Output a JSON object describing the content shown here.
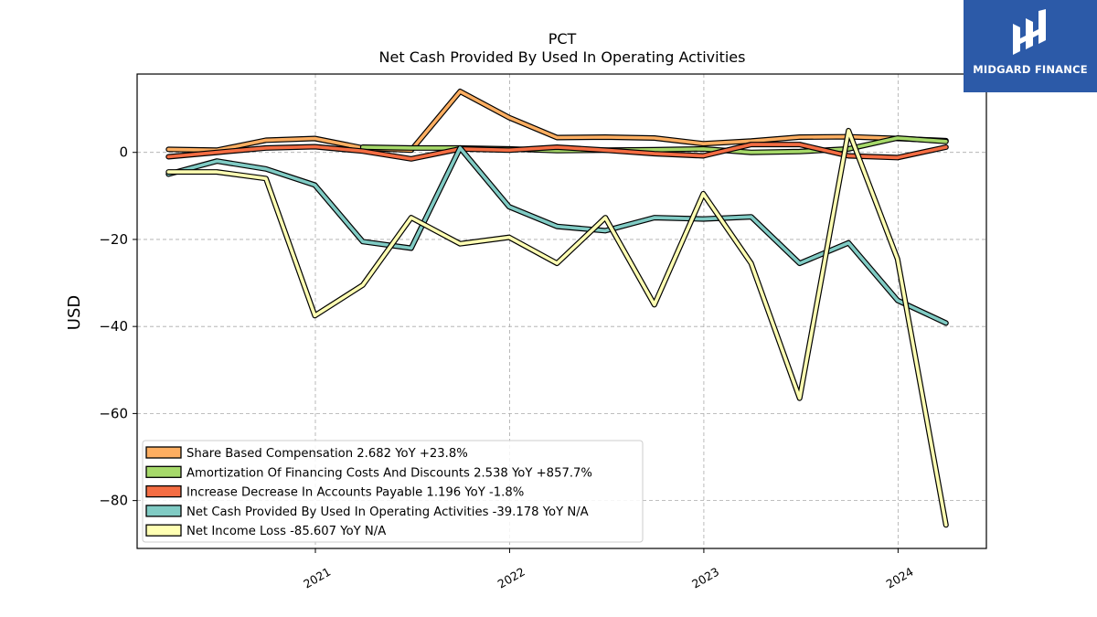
{
  "brand": {
    "name": "MIDGARD FINANCE",
    "bg_color": "#2c5aa8"
  },
  "chart_data": {
    "type": "line",
    "title": "PCT",
    "subtitle": "Net Cash Provided By Used In Operating Activities",
    "xlabel": "",
    "ylabel": "USD",
    "xlim": [
      "2020-02-01",
      "2024-06-15"
    ],
    "ylim": [
      -91,
      18
    ],
    "yticks": [
      0,
      -20,
      -40,
      -60,
      -80
    ],
    "ytick_labels": [
      "0",
      "−20",
      "−40",
      "−60",
      "−80"
    ],
    "xticks": [
      "2021-01-01",
      "2022-01-01",
      "2023-01-01",
      "2024-01-01"
    ],
    "xtick_labels": [
      "2021",
      "2022",
      "2023",
      "2024"
    ],
    "grid": true,
    "legend_position": "lower-left",
    "x": [
      "2020-03-31",
      "2020-06-30",
      "2020-09-30",
      "2020-12-31",
      "2021-03-31",
      "2021-06-30",
      "2021-09-30",
      "2021-12-31",
      "2022-03-31",
      "2022-06-30",
      "2022-09-30",
      "2022-12-31",
      "2023-03-31",
      "2023-06-30",
      "2023-09-30",
      "2023-12-31",
      "2024-03-31"
    ],
    "series": [
      {
        "name": "Share Based Compensation",
        "legend": "Share Based Compensation  2.682 YoY +23.8%",
        "color": "#fdae61",
        "values": [
          0.7,
          0.5,
          2.8,
          3.2,
          1.0,
          0.5,
          14.0,
          8.0,
          3.4,
          3.5,
          3.3,
          2.0,
          2.6,
          3.5,
          3.6,
          3.2,
          2.7
        ]
      },
      {
        "name": "Amortization Of Financing Costs And Discounts",
        "legend": "Amortization Of Financing Costs And Discounts  2.538 YoY +857.7%",
        "color": "#a6d96a",
        "values": [
          null,
          null,
          null,
          null,
          1.2,
          1.0,
          1.0,
          0.8,
          0.4,
          0.5,
          0.6,
          0.8,
          0.0,
          0.2,
          0.8,
          3.3,
          2.5
        ]
      },
      {
        "name": "Increase Decrease In Accounts Payable",
        "legend": "Increase Decrease In Accounts Payable  1.196 YoY -1.8%",
        "color": "#f46d43",
        "values": [
          -1.0,
          0.0,
          1.0,
          1.3,
          0.3,
          -1.5,
          0.8,
          0.5,
          1.2,
          0.5,
          -0.3,
          -0.8,
          1.8,
          1.8,
          -0.8,
          -1.2,
          1.2
        ]
      },
      {
        "name": "Net Cash Provided By Used In Operating Activities",
        "legend": "Net Cash Provided By Used In Operating Activities  -39.178 YoY N/A",
        "color": "#80cbc4",
        "values": [
          -5.0,
          -2.0,
          -3.8,
          -7.5,
          -20.5,
          -22.0,
          1.0,
          -12.5,
          -17.0,
          -18.0,
          -15.0,
          -15.3,
          -14.8,
          -25.5,
          -20.8,
          -34.0,
          -39.2
        ]
      },
      {
        "name": "Net Income Loss",
        "legend": "Net Income Loss  -85.607 YoY N/A",
        "color": "#ffffb3",
        "values": [
          -4.5,
          -4.5,
          -6.0,
          -37.5,
          -30.5,
          -15.0,
          -21.0,
          -19.5,
          -25.5,
          -15.0,
          -35.0,
          -9.5,
          -25.5,
          -56.5,
          5.0,
          -24.5,
          -85.6
        ]
      }
    ]
  }
}
